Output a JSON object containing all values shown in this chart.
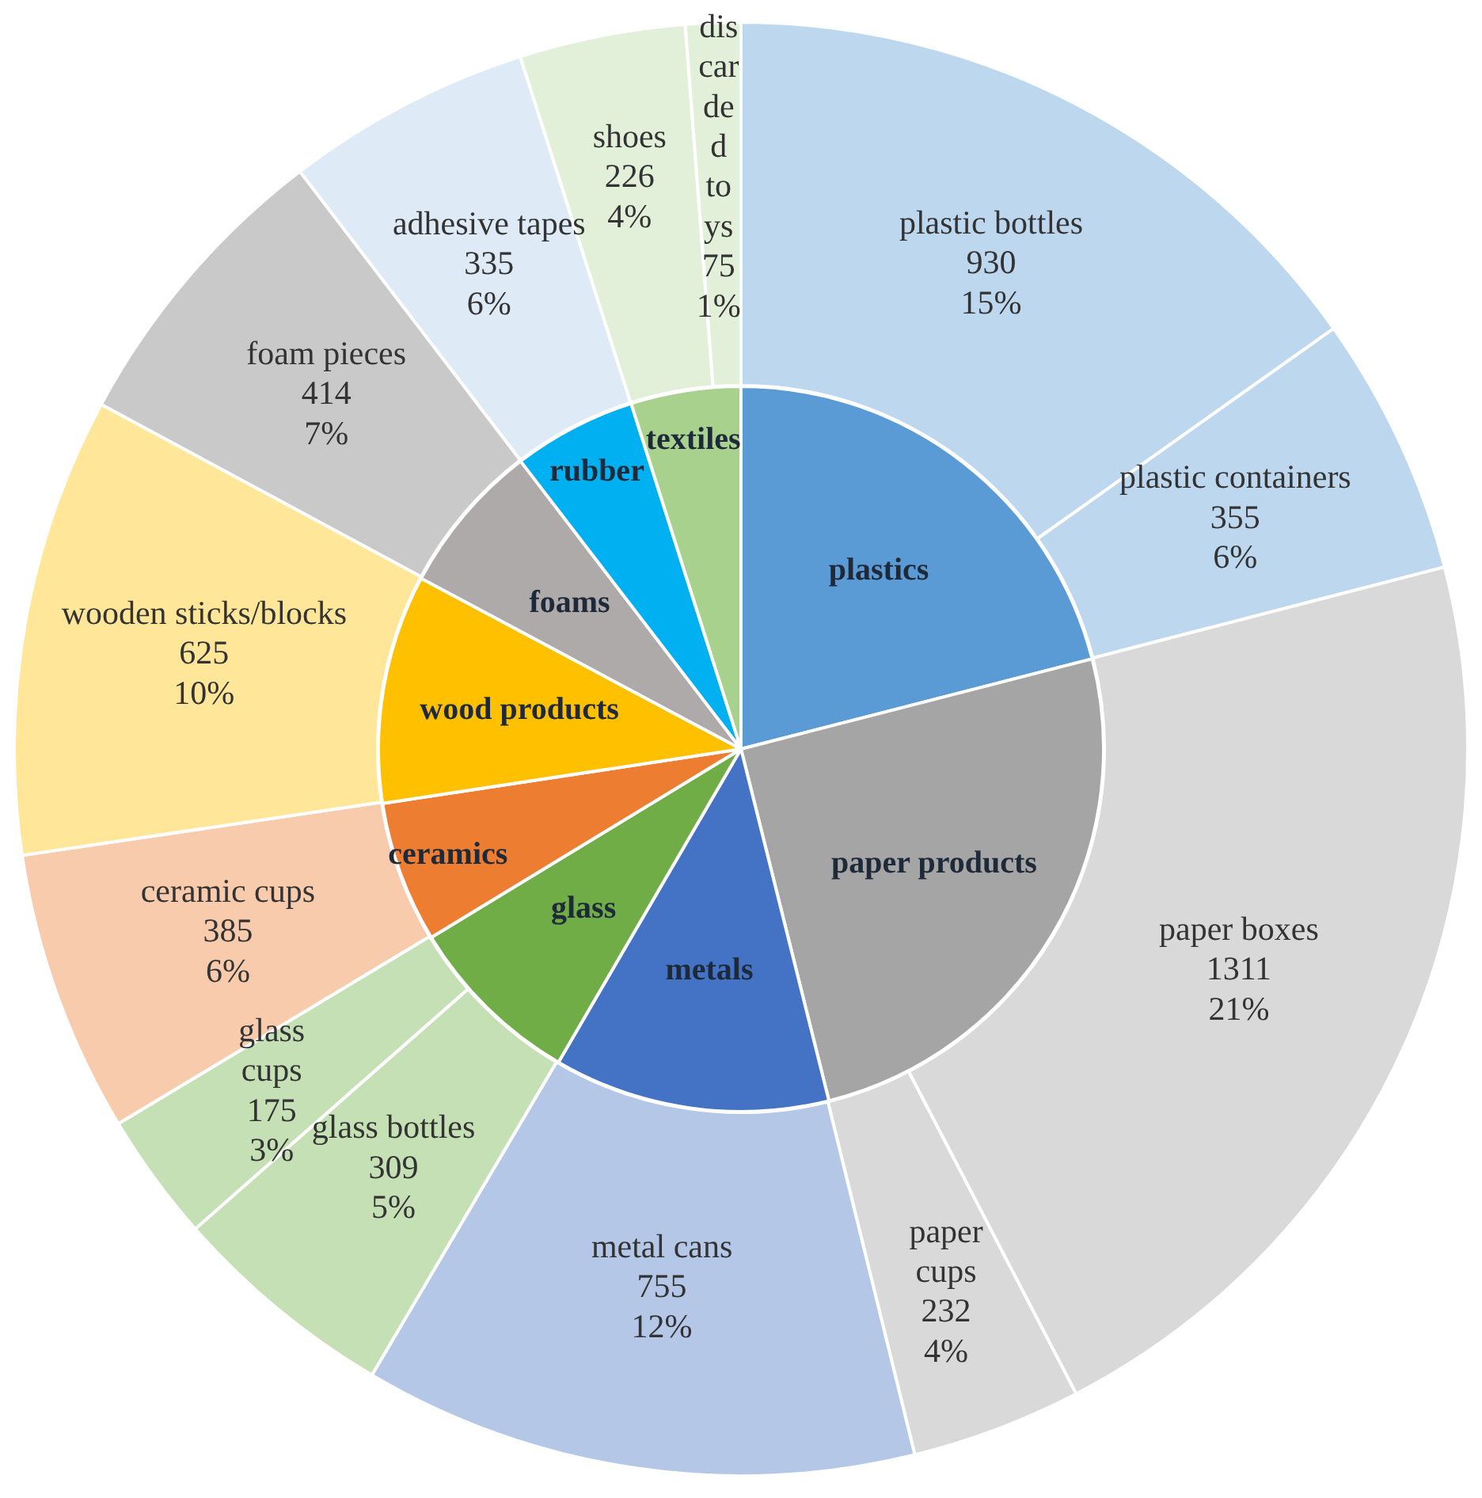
{
  "chart_data": [
    {
      "type": "pie",
      "legend": false,
      "categories": [
        "plastics",
        "paper products",
        "metals",
        "glass",
        "ceramics",
        "wood products",
        "foams",
        "rubber",
        "textiles"
      ],
      "values": [
        21.0,
        25.1,
        12.3,
        7.9,
        6.3,
        10.2,
        6.8,
        5.5,
        4.9
      ],
      "colors": [
        "#5b9bd5",
        "#a5a5a5",
        "#4472c4",
        "#70ad47",
        "#ed7d31",
        "#ffc000",
        "#aeaaaa",
        "#00b0f0",
        "#a9d18e"
      ]
    },
    {
      "type": "donut",
      "legend": false,
      "categories": [
        "plastic bottles",
        "plastic containers",
        "paper boxes",
        "paper cups",
        "metal cans",
        "glass bottles",
        "glass cups",
        "ceramic cups",
        "wooden sticks/blocks",
        "foam pieces",
        "adhesive tapes",
        "shoes",
        "discarded toys"
      ],
      "values": [
        930,
        355,
        1311,
        232,
        755,
        309,
        175,
        385,
        625,
        414,
        335,
        226,
        75
      ],
      "value_labels": [
        "930\n15%",
        "355\n6%",
        "1311\n21%",
        "232\n4%",
        "755\n12%",
        "309\n5%",
        "175\n3%",
        "385\n6%",
        "625\n10%",
        "414\n7%",
        "335\n6%",
        "226\n4%",
        "75\n1%"
      ],
      "colors": [
        "#bdd7ee",
        "#bdd7ee",
        "#d9d9d9",
        "#d9d9d9",
        "#b4c7e7",
        "#c5e0b4",
        "#c5e0b4",
        "#f8cbad",
        "#ffe699",
        "#c9c9c9",
        "#deebf7",
        "#e2f0d9",
        "#e2f0d9"
      ]
    }
  ]
}
